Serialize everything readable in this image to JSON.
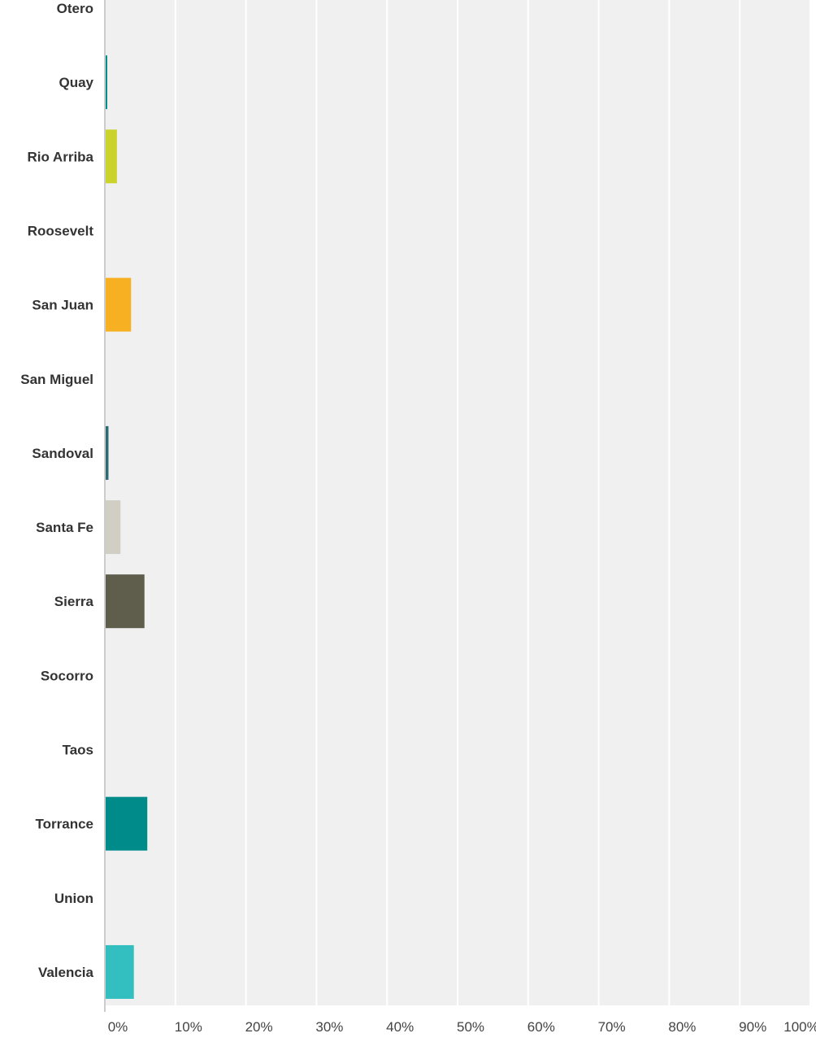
{
  "chart_data": {
    "type": "bar",
    "orientation": "horizontal",
    "categories": [
      "Otero",
      "Quay",
      "Rio Arriba",
      "Roosevelt",
      "San Juan",
      "San Miguel",
      "Sandoval",
      "Santa Fe",
      "Sierra",
      "Socorro",
      "Taos",
      "Torrance",
      "Union",
      "Valencia"
    ],
    "values": [
      0,
      0.2,
      1.6,
      0,
      3.6,
      0,
      0.4,
      2.1,
      5.5,
      0,
      0,
      5.9,
      0,
      4.0
    ],
    "colors": [
      "#1c8fa3",
      "#00908b",
      "#c9d32b",
      "#999999",
      "#f7b021",
      "#999999",
      "#2c6b74",
      "#d1cfc3",
      "#5f5d4c",
      "#999999",
      "#999999",
      "#008b8b",
      "#999999",
      "#33bfbf"
    ],
    "xlim": [
      0,
      100
    ],
    "x_ticks": [
      "0%",
      "10%",
      "20%",
      "30%",
      "40%",
      "50%",
      "60%",
      "70%",
      "80%",
      "90%",
      "100%"
    ],
    "grid": true,
    "plot_background": "#f0f0f0",
    "grid_color": "#ffffff"
  }
}
